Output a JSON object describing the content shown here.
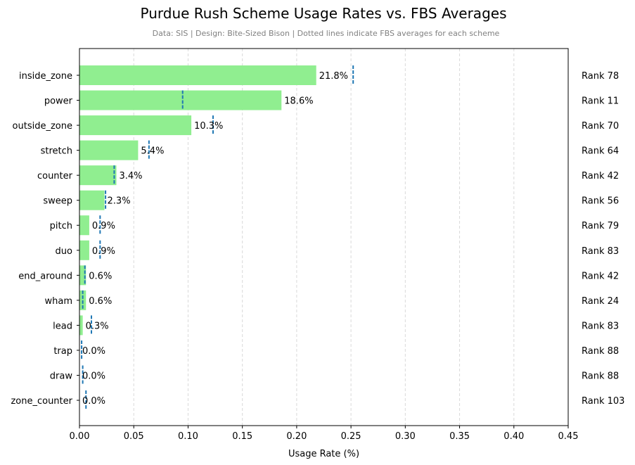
{
  "title": "Purdue Rush Scheme Usage Rates vs. FBS Averages",
  "subtitle": "Data: SIS | Design: Bite-Sized Bison | Dotted lines indicate FBS averages for each scheme",
  "colors": {
    "bar": "#90ee90",
    "avg_line": "#1f77b4",
    "grid": "#d9d9d9"
  },
  "chart_data": {
    "type": "bar",
    "orientation": "horizontal",
    "title": "Purdue Rush Scheme Usage Rates vs. FBS Averages",
    "subtitle": "Data: SIS | Design: Bite-Sized Bison | Dotted lines indicate FBS averages for each scheme",
    "xlabel": "Usage Rate (%)",
    "ylabel": "",
    "xlim": [
      0,
      0.45
    ],
    "xticks": [
      "0.00",
      "0.05",
      "0.10",
      "0.15",
      "0.20",
      "0.25",
      "0.30",
      "0.35",
      "0.40",
      "0.45"
    ],
    "grid": "vertical dashed",
    "categories": [
      "inside_zone",
      "power",
      "outside_zone",
      "stretch",
      "counter",
      "sweep",
      "pitch",
      "duo",
      "end_around",
      "wham",
      "lead",
      "trap",
      "draw",
      "zone_counter"
    ],
    "values": [
      0.218,
      0.186,
      0.103,
      0.054,
      0.034,
      0.023,
      0.009,
      0.009,
      0.006,
      0.006,
      0.003,
      0.0,
      0.0,
      0.0
    ],
    "value_labels": [
      "21.8%",
      "18.6%",
      "10.3%",
      "5.4%",
      "3.4%",
      "2.3%",
      "0.9%",
      "0.9%",
      "0.6%",
      "0.6%",
      "0.3%",
      "0.0%",
      "0.0%",
      "0.0%"
    ],
    "fbs_averages": [
      0.252,
      0.095,
      0.123,
      0.064,
      0.032,
      0.024,
      0.019,
      0.019,
      0.005,
      0.003,
      0.011,
      0.002,
      0.003,
      0.006
    ],
    "ranks": [
      "Rank 78",
      "Rank 11",
      "Rank 70",
      "Rank 64",
      "Rank 42",
      "Rank 56",
      "Rank 79",
      "Rank 83",
      "Rank 42",
      "Rank 24",
      "Rank 83",
      "Rank 88",
      "Rank 88",
      "Rank 103"
    ]
  }
}
